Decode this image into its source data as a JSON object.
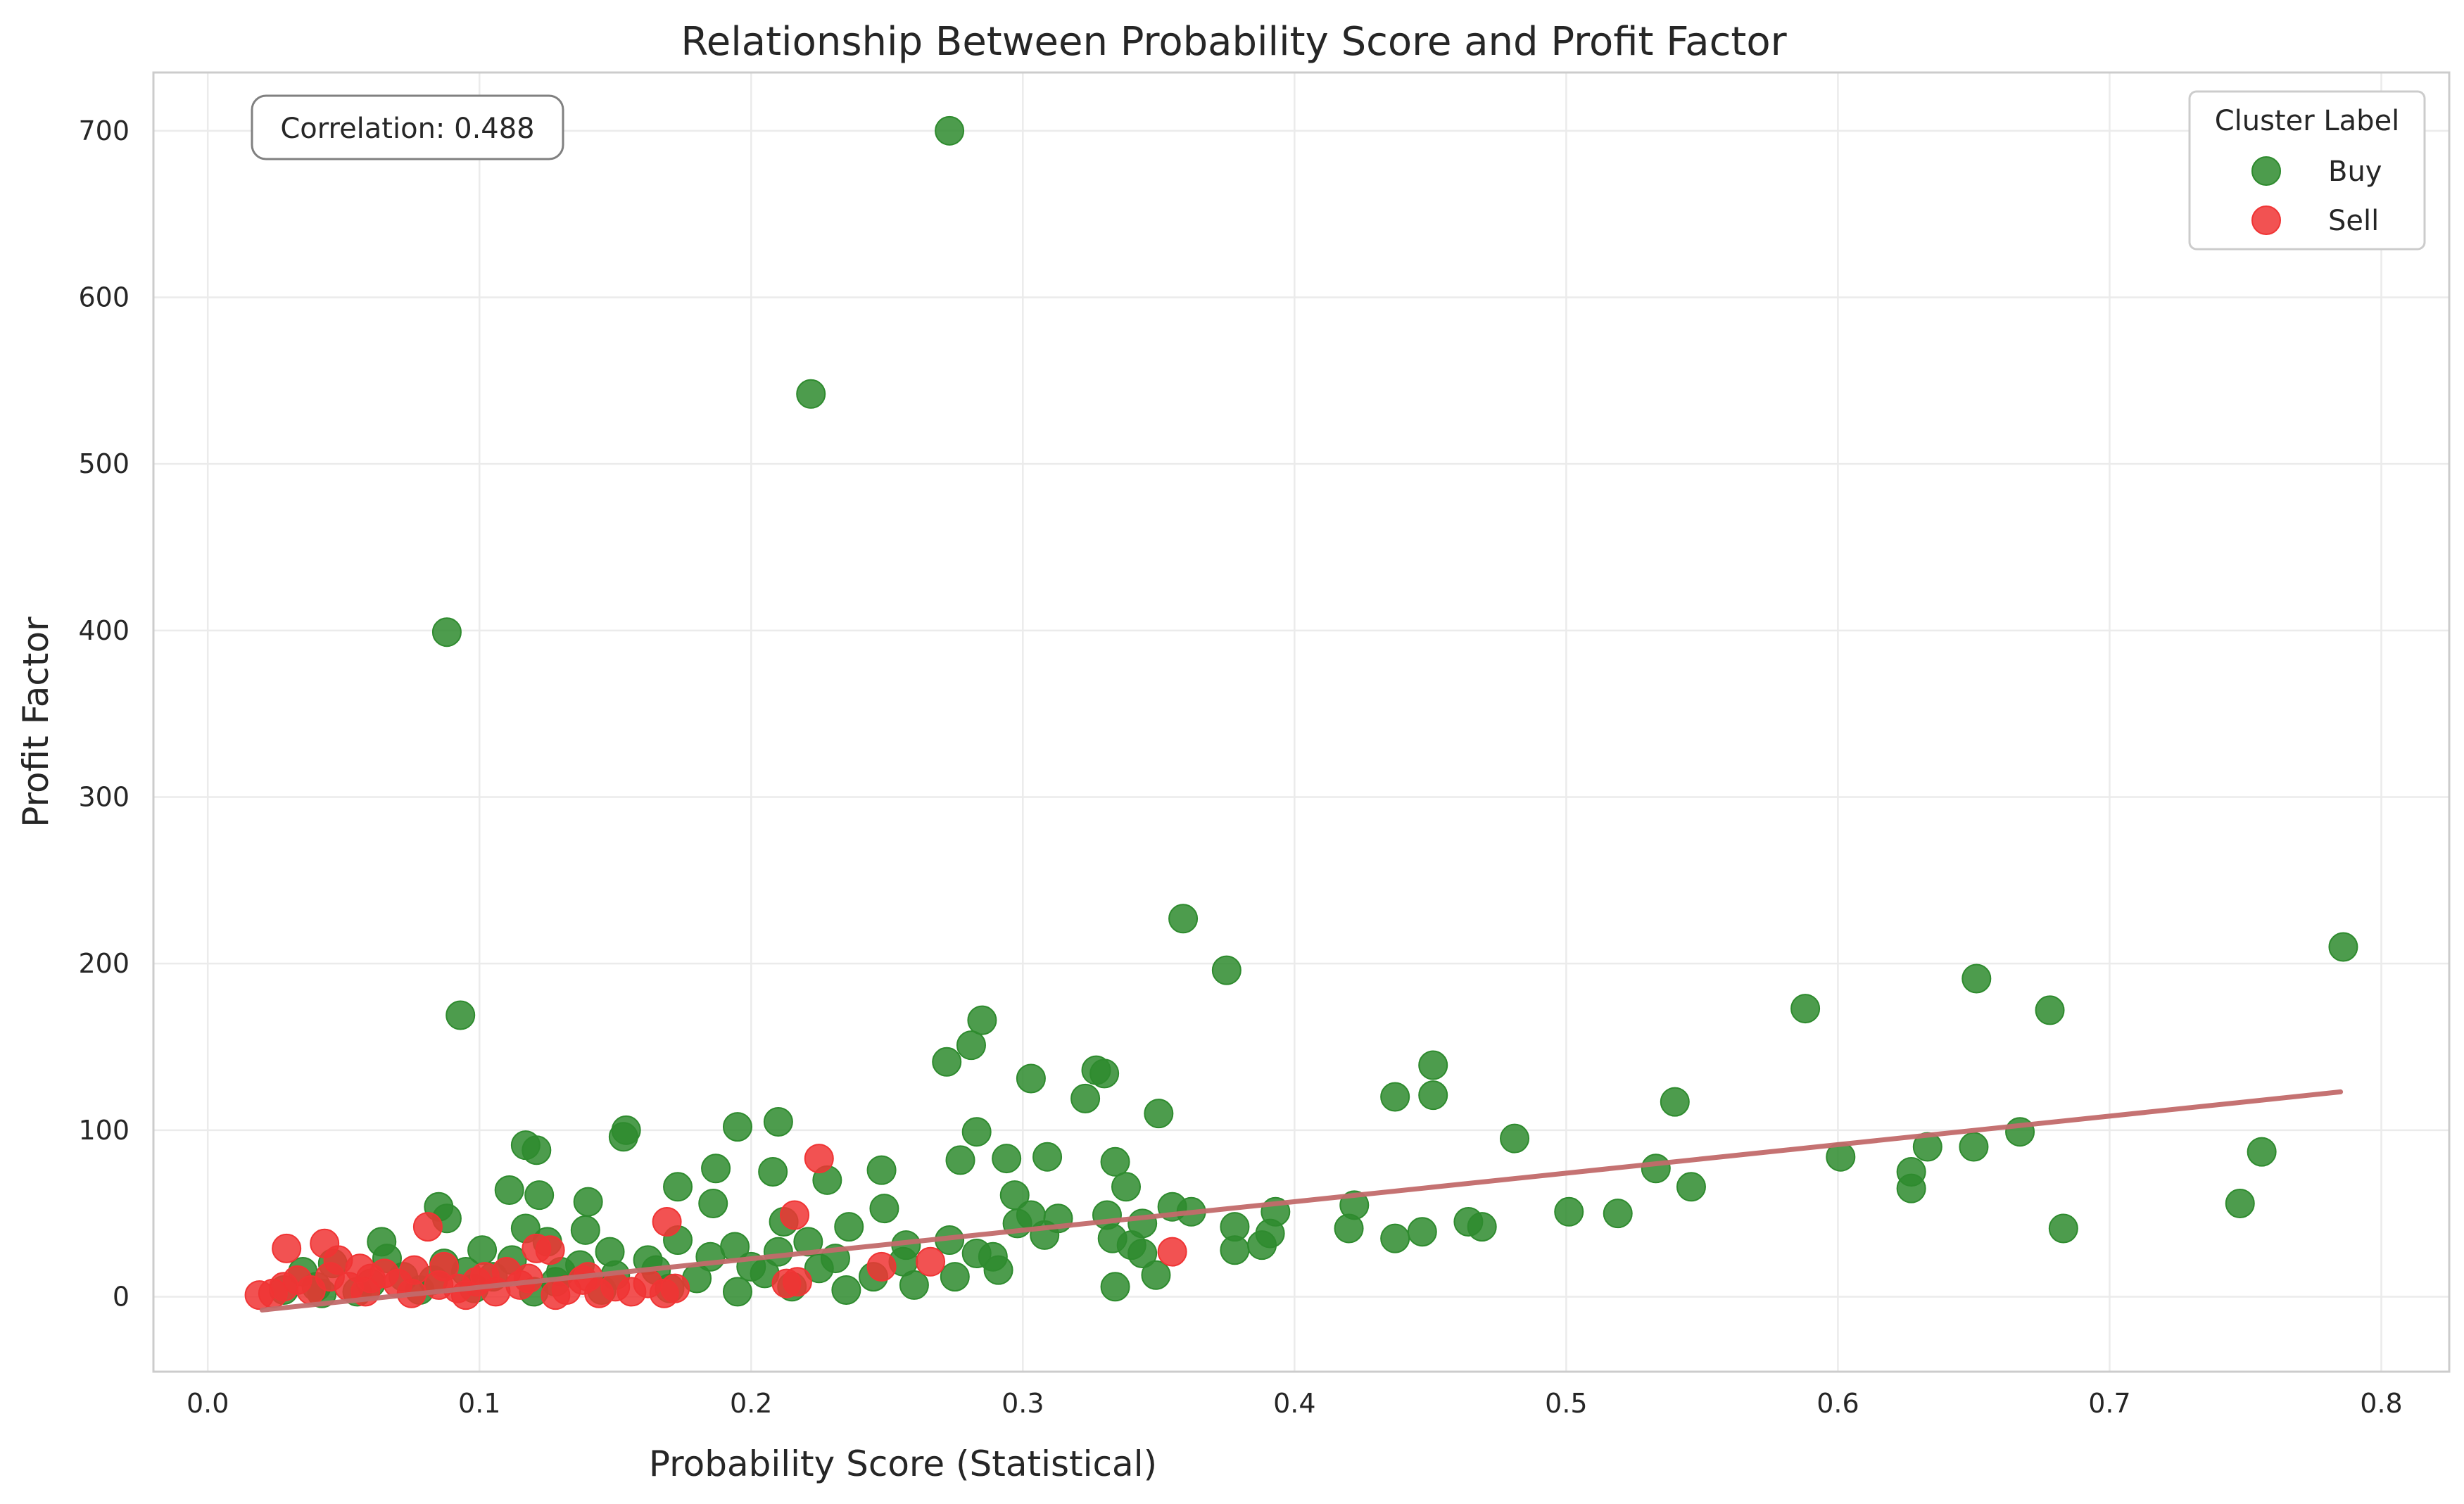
{
  "chart_data": {
    "type": "scatter",
    "title": "Relationship Between Probability Score and Profit Factor",
    "xlabel": "Probability Score (Statistical)",
    "ylabel": "Profit Factor",
    "xlim": [
      -0.02,
      0.825
    ],
    "ylim": [
      -45,
      735
    ],
    "xticks": [
      0.0,
      0.1,
      0.2,
      0.3,
      0.4,
      0.5,
      0.6,
      0.7,
      0.8
    ],
    "xtick_labels": [
      "0.0",
      "0.1",
      "0.2",
      "0.3",
      "0.4",
      "0.5",
      "0.6",
      "0.7",
      "0.8"
    ],
    "yticks": [
      0,
      100,
      200,
      300,
      400,
      500,
      600,
      700
    ],
    "ytick_labels": [
      "0",
      "100",
      "200",
      "300",
      "400",
      "500",
      "600",
      "700"
    ],
    "grid": true,
    "legend": {
      "title": "Cluster Label",
      "position": "top-right"
    },
    "annotation": "Correlation: 0.488",
    "colors": {
      "Buy": "#2e8b2e",
      "Sell": "#f03434",
      "trend": "#c26a6a"
    },
    "trend_line": {
      "x": [
        0.02,
        0.785
      ],
      "y": [
        -8,
        123
      ]
    },
    "series": [
      {
        "name": "Buy",
        "points": [
          [
            0.273,
            700
          ],
          [
            0.222,
            542
          ],
          [
            0.088,
            399
          ],
          [
            0.093,
            169
          ],
          [
            0.786,
            210
          ],
          [
            0.359,
            227
          ],
          [
            0.375,
            196
          ],
          [
            0.651,
            191
          ],
          [
            0.588,
            173
          ],
          [
            0.678,
            172
          ],
          [
            0.285,
            166
          ],
          [
            0.281,
            151
          ],
          [
            0.272,
            141
          ],
          [
            0.451,
            139
          ],
          [
            0.327,
            136
          ],
          [
            0.33,
            134
          ],
          [
            0.303,
            131
          ],
          [
            0.437,
            120
          ],
          [
            0.451,
            121
          ],
          [
            0.323,
            119
          ],
          [
            0.54,
            117
          ],
          [
            0.35,
            110
          ],
          [
            0.21,
            105
          ],
          [
            0.195,
            102
          ],
          [
            0.283,
            99
          ],
          [
            0.154,
            100
          ],
          [
            0.153,
            96
          ],
          [
            0.481,
            95
          ],
          [
            0.667,
            99
          ],
          [
            0.65,
            90
          ],
          [
            0.633,
            90
          ],
          [
            0.756,
            87
          ],
          [
            0.117,
            91
          ],
          [
            0.121,
            88
          ],
          [
            0.601,
            84
          ],
          [
            0.309,
            84
          ],
          [
            0.294,
            83
          ],
          [
            0.277,
            82
          ],
          [
            0.334,
            81
          ],
          [
            0.533,
            77
          ],
          [
            0.187,
            77
          ],
          [
            0.208,
            75
          ],
          [
            0.248,
            76
          ],
          [
            0.627,
            75
          ],
          [
            0.546,
            66
          ],
          [
            0.627,
            65
          ],
          [
            0.228,
            70
          ],
          [
            0.173,
            66
          ],
          [
            0.111,
            64
          ],
          [
            0.122,
            61
          ],
          [
            0.338,
            66
          ],
          [
            0.297,
            61
          ],
          [
            0.422,
            55
          ],
          [
            0.355,
            54
          ],
          [
            0.362,
            51
          ],
          [
            0.501,
            51
          ],
          [
            0.519,
            50
          ],
          [
            0.393,
            51
          ],
          [
            0.748,
            56
          ],
          [
            0.14,
            57
          ],
          [
            0.186,
            56
          ],
          [
            0.085,
            54
          ],
          [
            0.249,
            53
          ],
          [
            0.303,
            49
          ],
          [
            0.298,
            44
          ],
          [
            0.313,
            47
          ],
          [
            0.331,
            49
          ],
          [
            0.378,
            42
          ],
          [
            0.464,
            45
          ],
          [
            0.469,
            42
          ],
          [
            0.42,
            41
          ],
          [
            0.447,
            39
          ],
          [
            0.683,
            41
          ],
          [
            0.391,
            38
          ],
          [
            0.344,
            44
          ],
          [
            0.212,
            45
          ],
          [
            0.236,
            42
          ],
          [
            0.139,
            40
          ],
          [
            0.117,
            41
          ],
          [
            0.088,
            47
          ],
          [
            0.437,
            35
          ],
          [
            0.388,
            31
          ],
          [
            0.378,
            28
          ],
          [
            0.333,
            35
          ],
          [
            0.34,
            31
          ],
          [
            0.344,
            26
          ],
          [
            0.308,
            37
          ],
          [
            0.273,
            34
          ],
          [
            0.257,
            31
          ],
          [
            0.221,
            33
          ],
          [
            0.194,
            30
          ],
          [
            0.173,
            34
          ],
          [
            0.148,
            27
          ],
          [
            0.125,
            33
          ],
          [
            0.101,
            28
          ],
          [
            0.064,
            33
          ],
          [
            0.289,
            24
          ],
          [
            0.283,
            26
          ],
          [
            0.349,
            13
          ],
          [
            0.334,
            6
          ],
          [
            0.275,
            12
          ],
          [
            0.291,
            16
          ],
          [
            0.256,
            21
          ],
          [
            0.231,
            23
          ],
          [
            0.21,
            27
          ],
          [
            0.185,
            24
          ],
          [
            0.162,
            22
          ],
          [
            0.137,
            19
          ],
          [
            0.112,
            22
          ],
          [
            0.087,
            20
          ],
          [
            0.066,
            23
          ],
          [
            0.046,
            20
          ],
          [
            0.035,
            15
          ],
          [
            0.245,
            12
          ],
          [
            0.205,
            14
          ],
          [
            0.18,
            11
          ],
          [
            0.15,
            13
          ],
          [
            0.128,
            9
          ],
          [
            0.105,
            12
          ],
          [
            0.083,
            10
          ],
          [
            0.06,
            8
          ],
          [
            0.04,
            6
          ],
          [
            0.028,
            4
          ],
          [
            0.26,
            7
          ],
          [
            0.235,
            4
          ],
          [
            0.215,
            6
          ],
          [
            0.195,
            3
          ],
          [
            0.17,
            5
          ],
          [
            0.145,
            4
          ],
          [
            0.12,
            3
          ],
          [
            0.098,
            5
          ],
          [
            0.078,
            4
          ],
          [
            0.055,
            3
          ],
          [
            0.042,
            2
          ],
          [
            0.225,
            17
          ],
          [
            0.2,
            18
          ],
          [
            0.165,
            16
          ],
          [
            0.13,
            15
          ],
          [
            0.095,
            15
          ],
          [
            0.072,
            12
          ]
        ]
      },
      {
        "name": "Sell",
        "points": [
          [
            0.225,
            83
          ],
          [
            0.216,
            49
          ],
          [
            0.169,
            45
          ],
          [
            0.081,
            42
          ],
          [
            0.043,
            32
          ],
          [
            0.029,
            29
          ],
          [
            0.355,
            27
          ],
          [
            0.126,
            28
          ],
          [
            0.121,
            29
          ],
          [
            0.266,
            21
          ],
          [
            0.248,
            18
          ],
          [
            0.048,
            22
          ],
          [
            0.087,
            18
          ],
          [
            0.217,
            9
          ],
          [
            0.213,
            8
          ],
          [
            0.11,
            15
          ],
          [
            0.065,
            14
          ],
          [
            0.033,
            10
          ],
          [
            0.019,
            1
          ],
          [
            0.024,
            2
          ],
          [
            0.038,
            4
          ],
          [
            0.052,
            6
          ],
          [
            0.058,
            3
          ],
          [
            0.07,
            8
          ],
          [
            0.075,
            2
          ],
          [
            0.092,
            5
          ],
          [
            0.099,
            9
          ],
          [
            0.106,
            3
          ],
          [
            0.115,
            7
          ],
          [
            0.132,
            4
          ],
          [
            0.138,
            10
          ],
          [
            0.144,
            2
          ],
          [
            0.15,
            6
          ],
          [
            0.156,
            3
          ],
          [
            0.162,
            8
          ],
          [
            0.168,
            2
          ],
          [
            0.172,
            5
          ],
          [
            0.06,
            11
          ],
          [
            0.085,
            7
          ],
          [
            0.045,
            12
          ],
          [
            0.028,
            6
          ],
          [
            0.102,
            12
          ],
          [
            0.14,
            12
          ],
          [
            0.118,
            11
          ],
          [
            0.076,
            16
          ],
          [
            0.056,
            17
          ],
          [
            0.095,
            1
          ],
          [
            0.128,
            1
          ]
        ]
      }
    ]
  }
}
